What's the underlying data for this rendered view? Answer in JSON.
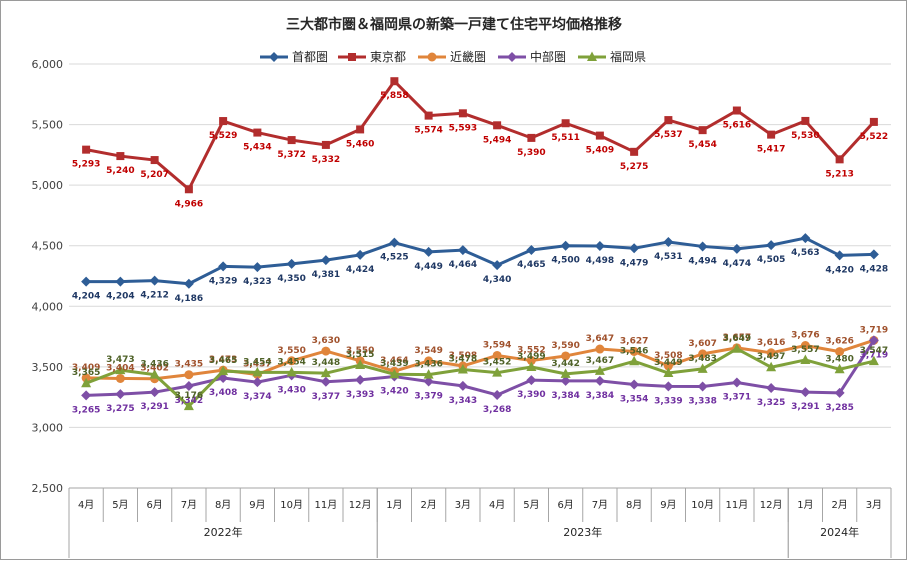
{
  "chart_data": {
    "type": "line",
    "title": "三大都市圏＆福岡県の新築一戸建て住宅平均価格推移",
    "categories": [
      "4月",
      "5月",
      "6月",
      "7月",
      "8月",
      "9月",
      "10月",
      "11月",
      "12月",
      "1月",
      "2月",
      "3月",
      "4月",
      "5月",
      "6月",
      "7月",
      "8月",
      "9月",
      "10月",
      "11月",
      "12月",
      "1月",
      "2月",
      "3月"
    ],
    "year_groups": [
      {
        "label": "2022年",
        "start": 0,
        "end": 8
      },
      {
        "label": "2023年",
        "start": 9,
        "end": 20
      },
      {
        "label": "2024年",
        "start": 21,
        "end": 23
      }
    ],
    "ylim": [
      2500,
      6000
    ],
    "yticks": [
      "2,500",
      "3,000",
      "3,500",
      "4,000",
      "4,500",
      "5,000",
      "5,500",
      "6,000"
    ],
    "ytick_values": [
      2500,
      3000,
      3500,
      4000,
      4500,
      5000,
      5500,
      6000
    ],
    "grid": true,
    "legend_position": "top",
    "series": [
      {
        "name": "首都圏",
        "color": "#2e5d96",
        "label_color": "#1f3864",
        "marker": "diamond",
        "label_pos": "below",
        "values": [
          4204,
          4204,
          4212,
          4186,
          4329,
          4323,
          4350,
          4381,
          4424,
          4525,
          4449,
          4464,
          4340,
          4465,
          4500,
          4498,
          4479,
          4531,
          4494,
          4474,
          4505,
          4563,
          4420,
          4428
        ],
        "labels": [
          "4,204",
          "4,204",
          "4,212",
          "4,186",
          "4,329",
          "4,323",
          "4,350",
          "4,381",
          "4,424",
          "4,525",
          "4,449",
          "4,464",
          "4,340",
          "4,465",
          "4,500",
          "4,498",
          "4,479",
          "4,531",
          "4,494",
          "4,474",
          "4,505",
          "4,563",
          "4,420",
          "4,428"
        ]
      },
      {
        "name": "東京都",
        "color": "#b22d2d",
        "label_color": "#c00000",
        "marker": "square",
        "label_pos": "below",
        "values": [
          5293,
          5240,
          5207,
          4966,
          5529,
          5434,
          5372,
          5332,
          5460,
          5858,
          5574,
          5593,
          5494,
          5390,
          5511,
          5409,
          5275,
          5537,
          5454,
          5616,
          5417,
          5530,
          5213,
          5522
        ],
        "labels": [
          "5,293",
          "5,240",
          "5,207",
          "4,966",
          "5,529",
          "5,434",
          "5,372",
          "5,332",
          "5,460",
          "5,858",
          "5,574",
          "5,593",
          "5,494",
          "5,390",
          "5,511",
          "5,409",
          "5,275",
          "5,537",
          "5,454",
          "5,616",
          "5,417",
          "5,530",
          "5,213",
          "5,522"
        ]
      },
      {
        "name": "近畿圏",
        "color": "#e0853b",
        "label_color": "#a0522d",
        "marker": "circle",
        "label_pos": "above",
        "values": [
          3409,
          3404,
          3402,
          3435,
          3473,
          3437,
          3550,
          3630,
          3550,
          3464,
          3549,
          3508,
          3594,
          3552,
          3590,
          3647,
          3627,
          3508,
          3607,
          3657,
          3616,
          3676,
          3626,
          3719
        ],
        "labels": [
          "3,409",
          "3,404",
          "3,402",
          "3,435",
          "3,473",
          "3,437",
          "3,550",
          "3,630",
          "3,550",
          "3,464",
          "3,549",
          "3,508",
          "3,594",
          "3,552",
          "3,590",
          "3,647",
          "3,627",
          "3,508",
          "3,607",
          "3,657",
          "3,616",
          "3,676",
          "3,626",
          "3,719"
        ]
      },
      {
        "name": "中部圏",
        "color": "#7e4fa6",
        "label_color": "#7030a0",
        "marker": "diamond",
        "label_pos": "below",
        "values": [
          3265,
          3275,
          3291,
          3342,
          3408,
          3374,
          3430,
          3377,
          3393,
          3420,
          3379,
          3343,
          3268,
          3390,
          3384,
          3384,
          3354,
          3339,
          3338,
          3371,
          3325,
          3291,
          3285,
          3719
        ],
        "labels": [
          "3,265",
          "3,275",
          "3,291",
          "3,342",
          "3,408",
          "3,374",
          "3,430",
          "3,377",
          "3,393",
          "3,420",
          "3,379",
          "3,343",
          "3,268",
          "3,390",
          "3,384",
          "3,384",
          "3,354",
          "3,339",
          "3,338",
          "3,371",
          "3,325",
          "3,291",
          "3,285",
          "3,719"
        ]
      },
      {
        "name": "福岡県",
        "color": "#7fa13a",
        "label_color": "#4f6228",
        "marker": "triangle",
        "label_pos": "above",
        "values": [
          3365,
          3473,
          3436,
          3176,
          3465,
          3454,
          3454,
          3448,
          3515,
          3439,
          3436,
          3478,
          3452,
          3499,
          3442,
          3467,
          3546,
          3449,
          3483,
          3649,
          3497,
          3557,
          3480,
          3547
        ],
        "labels": [
          "3,365",
          "3,473",
          "3,436",
          "3,176",
          "3,465",
          "3,454",
          "3,454",
          "3,448",
          "3,515",
          "3,439",
          "3,436",
          "3,478",
          "3,452",
          "3,499",
          "3,442",
          "3,467",
          "3,546",
          "3,449",
          "3,483",
          "3,649",
          "3,497",
          "3,557",
          "3,480",
          "3,547"
        ]
      }
    ]
  }
}
